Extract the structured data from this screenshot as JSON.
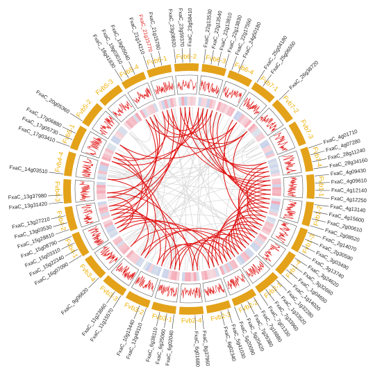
{
  "chromosomes": [
    {
      "label": "Fvb6-1",
      "genes": [
        {
          "label": "FxaC_21g14210"
        },
        {
          "label": "FxaC_21g15770",
          "color": "#e0201a"
        },
        {
          "label": "FxaC_21g15780"
        }
      ]
    },
    {
      "label": "Fvb6-2",
      "genes": [
        {
          "label": "FxaC_23g08920"
        },
        {
          "label": "FxaC_23g59370"
        },
        {
          "label": "FxaC_23g58410"
        }
      ]
    },
    {
      "label": "Fvb6-3",
      "genes": [
        {
          "label": "FxaC_22g13530"
        },
        {
          "label": "FxaC_22g13540"
        },
        {
          "label": "FxaC_22g13810"
        },
        {
          "label": "FxaC_22g13830"
        },
        {
          "label": "FxaC_22g17550"
        }
      ]
    },
    {
      "label": "Fvb6-4",
      "genes": [
        {
          "label": "FxaC_24g50180"
        }
      ]
    },
    {
      "label": "Fvb7-1",
      "genes": [
        {
          "label": "FxaC_25g04180"
        },
        {
          "label": "FxaC_25g06550"
        }
      ]
    },
    {
      "label": "Fvb7-2",
      "genes": [
        {
          "label": "FxaC_26g38720"
        }
      ]
    },
    {
      "label": "Fvb7-3",
      "genes": []
    },
    {
      "label": "Fvb7-4",
      "genes": [
        {
          "label": "FxaC_4g01710"
        },
        {
          "label": "FxaC_4g07280"
        },
        {
          "label": "FxaC_28g11240"
        },
        {
          "label": "FxaC_28g34160"
        }
      ]
    },
    {
      "label": "Fvb1-1",
      "genes": [
        {
          "label": "FxaC_4g09430"
        },
        {
          "label": "FxaC_4g09610"
        },
        {
          "label": "FxaC_4g12140"
        },
        {
          "label": "FxaC_4g12250"
        },
        {
          "label": "FxaC_4g13140"
        },
        {
          "label": "FxaC_4g15600"
        }
      ]
    },
    {
      "label": "Fvb1-2",
      "genes": [
        {
          "label": "FxaC_2g00610"
        },
        {
          "label": "FxaC_2g08520"
        },
        {
          "label": "FxaC_2g14070"
        },
        {
          "label": "FxaC_2g30590"
        }
      ]
    },
    {
      "label": "Fvb1-3",
      "genes": [
        {
          "label": "FxaC_3g03490"
        },
        {
          "label": "FxaC_3g13740"
        },
        {
          "label": "FxaC_3g24620"
        },
        {
          "label": "FxaC_3g32660"
        }
      ]
    },
    {
      "label": "Fvb1-4",
      "genes": [
        {
          "label": "FxaC_1g04650"
        },
        {
          "label": "FxaC_1g14020"
        },
        {
          "label": "FxaC_1g32280"
        },
        {
          "label": "FxaC_1g33520"
        }
      ]
    },
    {
      "label": "Fvb2-1",
      "genes": [
        {
          "label": "FxaC_7g33960"
        },
        {
          "label": "FxaC_7g01330"
        },
        {
          "label": "FxaC_7g16880"
        },
        {
          "label": "FxaC_7g26380"
        }
      ]
    },
    {
      "label": "Fvb2-2",
      "genes": [
        {
          "label": "FxaC_5g20420"
        },
        {
          "label": "FxaC_5g20090"
        }
      ]
    },
    {
      "label": "Fvb2-3",
      "genes": [
        {
          "label": "FxaC_5g41030"
        },
        {
          "label": "FxaC_6g02340"
        }
      ]
    },
    {
      "label": "Fvb2-4",
      "genes": [
        {
          "label": "FxaC_8g37960"
        },
        {
          "label": "FxaC_6g01680"
        }
      ]
    },
    {
      "label": "Fvb3-1",
      "genes": [
        {
          "label": "FxaC_6g02040"
        },
        {
          "label": "FxaC_6g25060"
        },
        {
          "label": "FxaC_6g38110"
        }
      ]
    },
    {
      "label": "Fvb3-2",
      "genes": [
        {
          "label": "FxaC_12g49110"
        },
        {
          "label": "FxaC_10g13440"
        }
      ]
    },
    {
      "label": "Fvb3-3",
      "genes": [
        {
          "label": "FxaC_11g15570"
        },
        {
          "label": "FxaC_11g23660"
        }
      ]
    },
    {
      "label": "Fvb3-4",
      "genes": [
        {
          "label": "FxaC_9g06620"
        }
      ]
    },
    {
      "label": "Fvb4-1",
      "genes": [
        {
          "label": "FxaC_16g07090"
        },
        {
          "label": "FxaC_15g22340"
        },
        {
          "label": "FxaC_15g03310"
        },
        {
          "label": "FxaC_15g08790"
        },
        {
          "label": "FxaC_15g28810"
        }
      ]
    },
    {
      "label": "Fvb4-2",
      "genes": [
        {
          "label": "FxaC_13g03530"
        },
        {
          "label": "FxaC_13g27210"
        }
      ]
    },
    {
      "label": "Fvb4-3",
      "genes": [
        {
          "label": "FxaC_13g31420"
        },
        {
          "label": "FxaC_13g37980"
        }
      ]
    },
    {
      "label": "Fvb4-4",
      "genes": [
        {
          "label": "FxaC_14g03510"
        }
      ]
    },
    {
      "label": "Fvb5-1",
      "genes": [
        {
          "label": "FxaC_17g03410"
        },
        {
          "label": "FxaC_17g05730"
        },
        {
          "label": "FxaC_17g06880"
        }
      ]
    },
    {
      "label": "Fvb5-2",
      "genes": [
        {
          "label": "FxaC_20g05360"
        }
      ]
    },
    {
      "label": "Fvb5-3",
      "genes": []
    },
    {
      "label": "Fvb5-4",
      "genes": [
        {
          "label": "FxaC_18g41830"
        },
        {
          "label": "FxaC_19g03010"
        },
        {
          "label": "FxaC_19g05040"
        }
      ]
    }
  ]
}
